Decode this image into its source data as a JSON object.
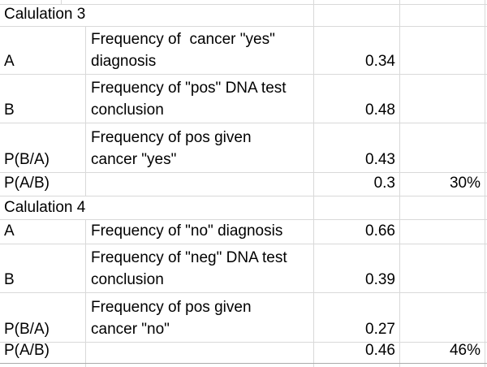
{
  "colors": {
    "gridline": "#d9d9d9",
    "gridline_strong": "#ababab",
    "text": "#000000",
    "background": "#ffffff"
  },
  "sections": [
    {
      "title": "Calulation 3",
      "rows": [
        {
          "label": "A",
          "description": "Frequency of  cancer \"yes\"\ndiagnosis",
          "value": "0.34",
          "percent": ""
        },
        {
          "label": "B",
          "description": "Frequency of \"pos\" DNA test\nconclusion",
          "value": "0.48",
          "percent": ""
        },
        {
          "label": "P(B/A)",
          "description": "Frequency of pos given\ncancer \"yes\"",
          "value": "0.43",
          "percent": ""
        },
        {
          "label": "P(A/B)",
          "description": "",
          "value": "0.3",
          "percent": "30%"
        }
      ]
    },
    {
      "title": "Calulation 4",
      "rows": [
        {
          "label": "A",
          "description": "Frequency of \"no\" diagnosis",
          "value": "0.66",
          "percent": ""
        },
        {
          "label": "B",
          "description": "Frequency of \"neg\" DNA test\nconclusion",
          "value": "0.39",
          "percent": ""
        },
        {
          "label": "P(B/A)",
          "description": "Frequency of pos given\ncancer \"no\"",
          "value": "0.27",
          "percent": ""
        },
        {
          "label": "P(A/B)",
          "description": "",
          "value": "0.46",
          "percent": "46%"
        }
      ]
    }
  ]
}
